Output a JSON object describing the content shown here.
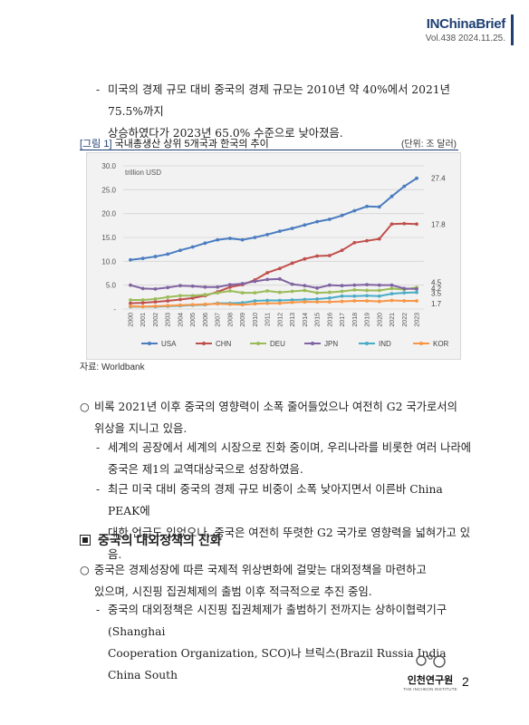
{
  "header": {
    "brand": "INChinaBrief",
    "vol": "Vol.438  2024.11.25."
  },
  "para1": {
    "marker": "-",
    "line1": "미국의 경제 규모 대비 중국의 경제 규모는 2010년 약 40%에서 2021년 75.5%까지",
    "line2": "상승하였다가 2023년 65.0% 수준으로 낮아졌음."
  },
  "figure": {
    "tag": "[그림 1]",
    "caption": "국내총생산 상위 5개국과 한국의 추이",
    "unit": "(단위: 조 달러)",
    "source": "자료: Worldbank"
  },
  "chart_data": {
    "type": "line",
    "unit_label": "trillion USD",
    "ylim": [
      0,
      30
    ],
    "yticks": [
      "30.0",
      "25.0",
      "20.0",
      "15.0",
      "10.0",
      "5.0",
      "-"
    ],
    "grid": true,
    "legend_position": "bottom",
    "x": [
      "2000",
      "2001",
      "2002",
      "2003",
      "2004",
      "2005",
      "2006",
      "2007",
      "2008",
      "2009",
      "2010",
      "2011",
      "2012",
      "2013",
      "2014",
      "2015",
      "2016",
      "2017",
      "2018",
      "2019",
      "2020",
      "2021",
      "2022",
      "2023"
    ],
    "series": [
      {
        "name": "USA",
        "color": "#4a7cc0",
        "values": [
          10.3,
          10.6,
          11.0,
          11.5,
          12.3,
          13.0,
          13.8,
          14.5,
          14.8,
          14.5,
          15.0,
          15.6,
          16.3,
          16.9,
          17.6,
          18.3,
          18.8,
          19.6,
          20.6,
          21.5,
          21.4,
          23.6,
          25.7,
          27.4
        ]
      },
      {
        "name": "CHN",
        "color": "#c0504d",
        "values": [
          1.2,
          1.3,
          1.5,
          1.7,
          2.0,
          2.3,
          2.8,
          3.6,
          4.6,
          5.1,
          6.1,
          7.6,
          8.5,
          9.6,
          10.5,
          11.1,
          11.2,
          12.3,
          13.9,
          14.3,
          14.7,
          17.8,
          17.9,
          17.8
        ]
      },
      {
        "name": "DEU",
        "color": "#9bbb59",
        "values": [
          1.9,
          1.9,
          2.1,
          2.5,
          2.8,
          2.8,
          3.0,
          3.4,
          3.8,
          3.4,
          3.4,
          3.8,
          3.5,
          3.7,
          3.9,
          3.4,
          3.5,
          3.7,
          4.0,
          3.9,
          3.9,
          4.3,
          4.1,
          4.5
        ]
      },
      {
        "name": "JPN",
        "color": "#8064a2",
        "values": [
          5.0,
          4.3,
          4.2,
          4.5,
          4.9,
          4.8,
          4.6,
          4.6,
          5.1,
          5.3,
          5.8,
          6.2,
          6.3,
          5.2,
          4.9,
          4.4,
          5.0,
          4.9,
          5.0,
          5.1,
          5.0,
          5.0,
          4.3,
          4.2
        ]
      },
      {
        "name": "IND",
        "color": "#4bacc6",
        "values": [
          0.5,
          0.5,
          0.5,
          0.6,
          0.7,
          0.8,
          0.9,
          1.2,
          1.2,
          1.3,
          1.7,
          1.8,
          1.8,
          1.9,
          2.0,
          2.1,
          2.3,
          2.7,
          2.7,
          2.8,
          2.7,
          3.2,
          3.4,
          3.5
        ]
      },
      {
        "name": "KOR",
        "color": "#f79646",
        "values": [
          0.6,
          0.5,
          0.6,
          0.7,
          0.8,
          0.9,
          1.0,
          1.1,
          1.0,
          0.9,
          1.1,
          1.2,
          1.2,
          1.4,
          1.5,
          1.5,
          1.5,
          1.6,
          1.7,
          1.7,
          1.6,
          1.8,
          1.7,
          1.7
        ]
      }
    ],
    "end_labels": [
      "27.4",
      "17.8",
      "4.5",
      "4.2",
      "3.5",
      "1.7"
    ]
  },
  "para2": {
    "marker": "○",
    "line1": "비록 2021년 이후 중국의 영향력이 소폭 줄어들었으나 여전히 G2 국가로서의",
    "line2": "위상을 지니고 있음."
  },
  "para3": {
    "marker": "-",
    "line1": "세계의 공장에서 세계의 시장으로 진화 중이며, 우리나라를 비롯한 여러 나라에",
    "line2": "중국은 제1의 교역대상국으로 성장하였음."
  },
  "para4": {
    "marker": "-",
    "line1": "최근 미국 대비 중국의 경제 규모 비중이 소폭 낮아지면서 이른바 China PEAK에",
    "line2": "대한 언급도 있었으나, 중국은 여전히 뚜렷한 G2 국가로 영향력을 넓혀가고 있음."
  },
  "section": {
    "title": "중국의 대외정책의 진화"
  },
  "para5": {
    "marker": "○",
    "line1": "중국은 경제성장에 따른 국제적 위상변화에 걸맞는 대외정책을 마련하고",
    "line2": "있으며, 시진핑 집권체제의 출범 이후 적극적으로 추진 중임."
  },
  "para6": {
    "marker": "-",
    "line1": "중국의 대외정책은 시진핑 집권체제가 출범하기 전까지는 상하이협력기구 (Shanghai",
    "line2": "Cooperation Organization, SCO)나 브릭스(Brazil Russia India China South"
  },
  "footer": {
    "logo_name": "인천연구원",
    "logo_sub": "THE INCHEON INSTITUTE",
    "page": "2"
  }
}
